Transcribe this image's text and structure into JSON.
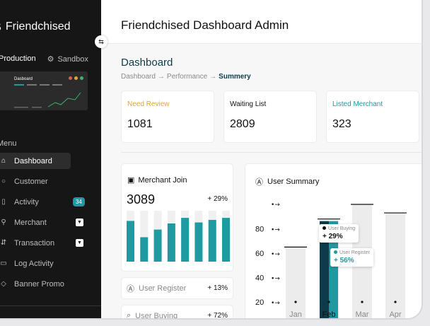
{
  "app": {
    "brand": "Friendchised",
    "title": "Friendchised Dashboard Admin"
  },
  "env": {
    "active": "Production",
    "inactive": "Sandbox"
  },
  "preview": {
    "title": "Dasboard"
  },
  "menu": {
    "label": "Menu",
    "items": [
      {
        "label": "Dashboard",
        "icon": "home-icon",
        "active": true
      },
      {
        "label": "Customer",
        "icon": "user-icon"
      },
      {
        "label": "Activity",
        "icon": "activity-icon",
        "badge": "34"
      },
      {
        "label": "Merchant",
        "icon": "store-icon",
        "chevron": true
      },
      {
        "label": "Transaction",
        "icon": "card-icon",
        "chevron": true
      },
      {
        "label": "Log Activity",
        "icon": "log-icon"
      },
      {
        "label": "Banner Promo",
        "icon": "banner-icon"
      }
    ]
  },
  "page": {
    "title": "Dashboard",
    "breadcrumb": [
      "Dashboard",
      "Performance",
      "Summery"
    ],
    "breadcrumb_sep": "→"
  },
  "stats": [
    {
      "label": "Need Review",
      "value": "1081",
      "color": "#e0a63a"
    },
    {
      "label": "Waiting List",
      "value": "2809",
      "color": "#111111"
    },
    {
      "label": "Listed Merchant",
      "value": "323",
      "color": "#1f9aa0"
    }
  ],
  "merchant_join": {
    "title": "Merchant Join",
    "value": "3089",
    "change": "+ 29%"
  },
  "user_register": {
    "label": "User Register",
    "change": "+ 13%"
  },
  "user_buying": {
    "label": "User Buying",
    "change": "+ 72%"
  },
  "user_summary": {
    "title": "User Summary",
    "tip_buying": {
      "label": "User Buying",
      "value": "+ 29%"
    },
    "tip_register": {
      "label": "User Register",
      "value": "+ 56%"
    }
  },
  "chart_data": [
    {
      "type": "bar",
      "title": "Merchant Join",
      "values": [
        0.8,
        0.48,
        0.63,
        0.75,
        0.86,
        0.77,
        0.82,
        0.86
      ],
      "color": "#1f9aa0",
      "track_color": "#f0f0f1"
    },
    {
      "type": "bar",
      "title": "User Summary",
      "categories": [
        "Jan",
        "Feb",
        "Mar",
        "Apr"
      ],
      "y_ticks": [
        "20",
        "40",
        "60",
        "80"
      ],
      "values": [
        65,
        88,
        100,
        93
      ],
      "ylim": [
        20,
        100
      ],
      "highlight": "Feb",
      "highlight_color": "#1f9aa0"
    }
  ]
}
